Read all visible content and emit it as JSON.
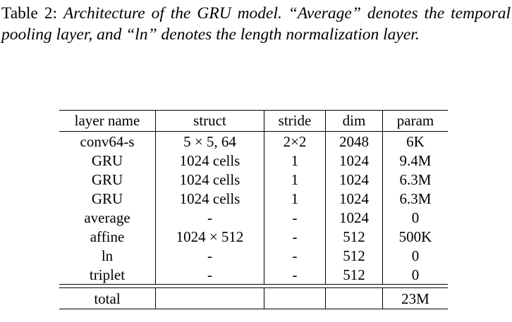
{
  "caption": {
    "label": "Table 2:",
    "text": "Architecture of the GRU model. “Average” denotes the temporal pooling layer, and “ln” denotes the length normalization layer."
  },
  "table": {
    "headers": [
      "layer name",
      "struct",
      "stride",
      "dim",
      "param"
    ],
    "rows": [
      [
        "conv64-s",
        "5 × 5, 64",
        "2×2",
        "2048",
        "6K"
      ],
      [
        "GRU",
        "1024 cells",
        "1",
        "1024",
        "9.4M"
      ],
      [
        "GRU",
        "1024 cells",
        "1",
        "1024",
        "6.3M"
      ],
      [
        "GRU",
        "1024 cells",
        "1",
        "1024",
        "6.3M"
      ],
      [
        "average",
        "-",
        "-",
        "1024",
        "0"
      ],
      [
        "affine",
        "1024 × 512",
        "-",
        "512",
        "500K"
      ],
      [
        "ln",
        "-",
        "-",
        "512",
        "0"
      ],
      [
        "triplet",
        "-",
        "-",
        "512",
        "0"
      ]
    ],
    "total": [
      "total",
      "",
      "",
      "",
      "23M"
    ]
  }
}
